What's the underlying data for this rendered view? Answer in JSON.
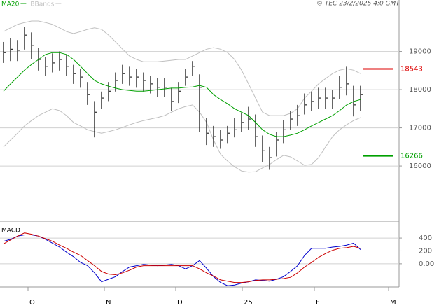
{
  "chart_data": [
    {
      "type": "ohlc",
      "source": "© TEC 23/2/2025 4:0 GMT",
      "xlim": [
        -0.5,
        56.5
      ],
      "xticks": [
        {
          "value": 3.5,
          "label": "O"
        },
        {
          "value": 14.4,
          "label": "N"
        },
        {
          "value": 24.6,
          "label": "D"
        },
        {
          "value": 34.1,
          "label": "25"
        },
        {
          "value": 44.4,
          "label": "F"
        },
        {
          "value": 55,
          "label": "M"
        }
      ],
      "ylim": [
        14570,
        20350
      ],
      "yticks": [
        19000,
        18000,
        17000,
        16000
      ],
      "grid": true,
      "color": "#000000",
      "high": [
        19250,
        19350,
        19300,
        19650,
        19500,
        19100,
        18850,
        18950,
        19000,
        18900,
        18650,
        18550,
        18200,
        17700,
        17950,
        18200,
        18450,
        18650,
        18600,
        18550,
        18450,
        18350,
        18300,
        18300,
        18050,
        18200,
        18550,
        18750,
        18400,
        17250,
        17050,
        16950,
        17050,
        17250,
        17400,
        17550,
        17350,
        16800,
        16500,
        16900,
        17200,
        17450,
        17600,
        17900,
        17950,
        18050,
        18050,
        18000,
        18350,
        18600,
        18100,
        18100
      ],
      "low": [
        18700,
        18750,
        18750,
        19050,
        18800,
        18500,
        18350,
        18450,
        18500,
        18350,
        18150,
        18050,
        17600,
        16750,
        17500,
        17700,
        17950,
        18150,
        18100,
        18050,
        17950,
        17900,
        17800,
        17800,
        17450,
        17650,
        18100,
        18350,
        16900,
        16550,
        16500,
        16450,
        16600,
        16750,
        16900,
        16950,
        16500,
        16100,
        15900,
        16250,
        16600,
        16950,
        17050,
        17350,
        17450,
        17500,
        17500,
        17500,
        17750,
        17850,
        17300,
        17450
      ],
      "close": [
        18970,
        19060,
        19030,
        19430,
        19160,
        18790,
        18610,
        18700,
        18790,
        18610,
        18420,
        18330,
        17870,
        17410,
        17780,
        17960,
        18240,
        18420,
        18330,
        18330,
        18240,
        18150,
        18060,
        18060,
        17690,
        17960,
        18330,
        18610,
        18060,
        16860,
        16770,
        16680,
        16860,
        16950,
        17140,
        17230,
        16770,
        16400,
        16220,
        16680,
        16950,
        17230,
        17320,
        17600,
        17690,
        17780,
        17780,
        17780,
        18060,
        18150,
        17600,
        17870
      ],
      "series": [
        {
          "name": "MA20",
          "color": "#00a000",
          "values": [
            17960,
            18150,
            18330,
            18510,
            18660,
            18790,
            18920,
            18970,
            18970,
            18920,
            18790,
            18610,
            18420,
            18240,
            18150,
            18090,
            18040,
            18000,
            17980,
            17960,
            17960,
            17980,
            18000,
            18020,
            18040,
            18040,
            18060,
            18070,
            18110,
            18060,
            17870,
            17740,
            17630,
            17500,
            17410,
            17320,
            17140,
            16950,
            16830,
            16770,
            16770,
            16810,
            16860,
            16950,
            17050,
            17140,
            17230,
            17320,
            17450,
            17600,
            17690,
            17740
          ]
        },
        {
          "name": "BBands",
          "color": "#c0c0c0",
          "upper": [
            19520,
            19620,
            19710,
            19760,
            19800,
            19800,
            19760,
            19710,
            19620,
            19520,
            19470,
            19520,
            19580,
            19620,
            19580,
            19430,
            19250,
            19060,
            18880,
            18790,
            18730,
            18730,
            18730,
            18750,
            18770,
            18790,
            18790,
            18880,
            18970,
            19060,
            19100,
            19060,
            18970,
            18790,
            18510,
            18150,
            17780,
            17410,
            17320,
            17320,
            17320,
            17380,
            17500,
            17780,
            17960,
            18150,
            18290,
            18420,
            18510,
            18550,
            18510,
            18420
          ],
          "lower": [
            16500,
            16680,
            16860,
            17050,
            17190,
            17320,
            17410,
            17500,
            17450,
            17320,
            17140,
            17050,
            16950,
            16900,
            16860,
            16900,
            16950,
            17010,
            17080,
            17140,
            17190,
            17230,
            17270,
            17320,
            17410,
            17500,
            17560,
            17600,
            17410,
            17140,
            16680,
            16310,
            16130,
            15980,
            15870,
            15840,
            15850,
            15950,
            16040,
            16170,
            16280,
            16240,
            16130,
            16020,
            16040,
            16220,
            16500,
            16770,
            16950,
            17080,
            17190,
            17270
          ]
        }
      ],
      "levels": [
        {
          "value": 18543,
          "color": "#dd0000"
        },
        {
          "value": 16266,
          "color": "#00a000"
        }
      ]
    },
    {
      "type": "line",
      "title": "MACD",
      "ylim": [
        -360,
        640
      ],
      "yticks": [
        400,
        200,
        {
          "value": 0,
          "label": "0.00"
        }
      ],
      "grid": true,
      "series": [
        {
          "color": "#0000cc",
          "values": [
            350,
            380,
            430,
            450,
            450,
            430,
            380,
            320,
            260,
            180,
            110,
            20,
            -30,
            -140,
            -280,
            -240,
            -200,
            -120,
            -50,
            -30,
            -10,
            -20,
            -30,
            -20,
            -10,
            -30,
            -80,
            -30,
            50,
            -70,
            -200,
            -290,
            -340,
            -330,
            -300,
            -280,
            -250,
            -260,
            -270,
            -240,
            -200,
            -120,
            -30,
            130,
            240,
            240,
            240,
            260,
            270,
            290,
            320,
            220
          ]
        },
        {
          "color": "#cc0000",
          "values": [
            310,
            370,
            430,
            480,
            460,
            430,
            390,
            350,
            290,
            240,
            180,
            130,
            50,
            -30,
            -120,
            -160,
            -170,
            -140,
            -100,
            -50,
            -30,
            -30,
            -30,
            -30,
            -30,
            -30,
            -30,
            -30,
            -80,
            -140,
            -190,
            -250,
            -270,
            -290,
            -290,
            -280,
            -260,
            -250,
            -250,
            -240,
            -230,
            -210,
            -140,
            -50,
            20,
            100,
            160,
            210,
            240,
            250,
            270,
            240
          ]
        }
      ]
    }
  ]
}
